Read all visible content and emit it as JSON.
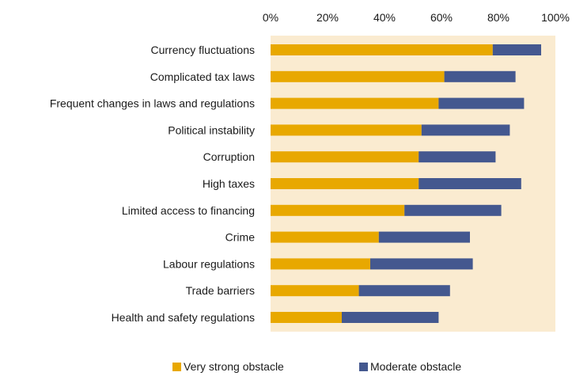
{
  "chart_data": {
    "type": "bar",
    "orientation": "horizontal",
    "stacked": true,
    "categories": [
      "Currency fluctuations",
      "Complicated tax laws",
      "Frequent changes in laws and regulations",
      "Political instability",
      "Corruption",
      "High taxes",
      "Limited access to financing",
      "Crime",
      "Labour regulations",
      "Trade barriers",
      "Health and safety regulations"
    ],
    "series": [
      {
        "name": "Very strong obstacle",
        "color": "#E8A800",
        "values": [
          78,
          61,
          59,
          53,
          52,
          52,
          47,
          38,
          35,
          31,
          25
        ]
      },
      {
        "name": "Moderate obstacle",
        "color": "#44588F",
        "values": [
          17,
          25,
          30,
          31,
          27,
          36,
          34,
          32,
          36,
          32,
          34
        ]
      }
    ],
    "xlim": [
      0,
      100
    ],
    "xticks": [
      "0%",
      "20%",
      "40%",
      "60%",
      "80%",
      "100%"
    ],
    "xaxis_position": "top",
    "grid": false,
    "plot_background": "#FAEBD0",
    "legend_position": "bottom"
  }
}
